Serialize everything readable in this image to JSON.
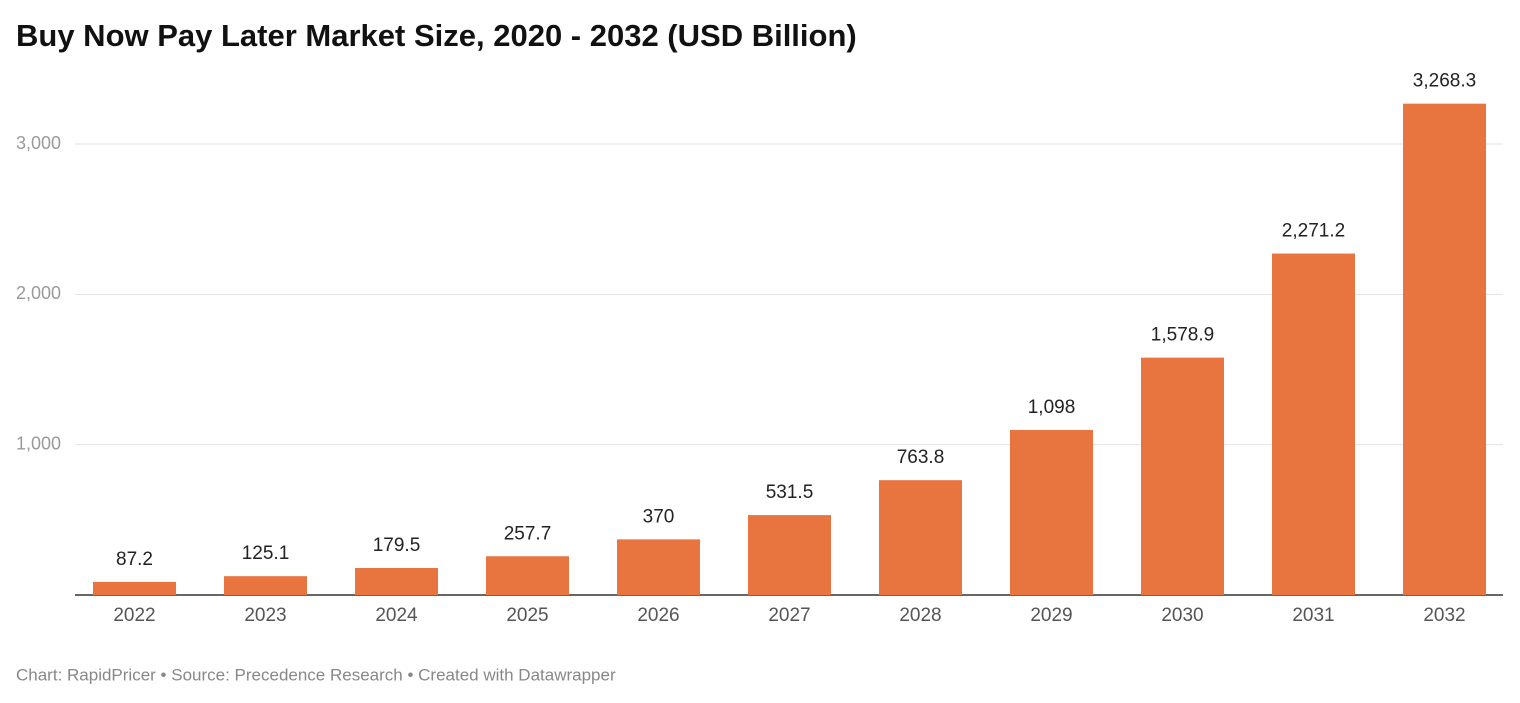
{
  "chart_data": {
    "type": "bar",
    "title": "Buy Now Pay Later Market Size, 2020 - 2032 (USD Billion)",
    "categories": [
      "2022",
      "2023",
      "2024",
      "2025",
      "2026",
      "2027",
      "2028",
      "2029",
      "2030",
      "2031",
      "2032"
    ],
    "values": [
      87.2,
      125.1,
      179.5,
      257.7,
      370,
      531.5,
      763.8,
      1098,
      1578.9,
      2271.2,
      3268.3
    ],
    "value_labels": [
      "87.2",
      "125.1",
      "179.5",
      "257.7",
      "370",
      "531.5",
      "763.8",
      "1,098",
      "1,578.9",
      "2,271.2",
      "3,268.3"
    ],
    "color": "#e8743f",
    "ylim": [
      0,
      3000
    ],
    "yticks": [
      {
        "value": 1000,
        "label": "1,000"
      },
      {
        "value": 2000,
        "label": "2,000"
      },
      {
        "value": 3000,
        "label": "3,000"
      }
    ],
    "grid": true,
    "source": "Chart: RapidPricer • Source: Precedence Research • Created with Datawrapper"
  }
}
